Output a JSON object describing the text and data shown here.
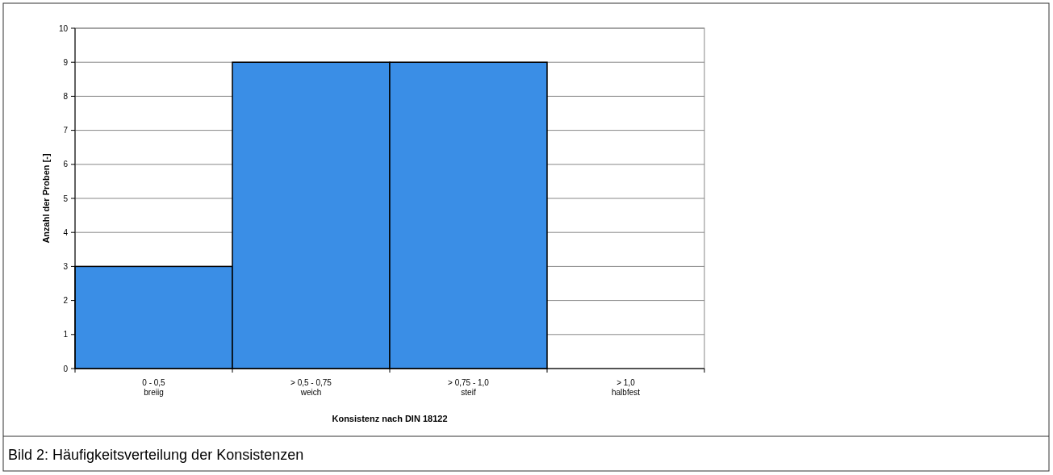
{
  "chart_data": {
    "type": "bar",
    "categories": [
      "0 - 0,5\nbreiig",
      "> 0,5 - 0,75\nweich",
      "> 0,75 - 1,0\nsteif",
      "> 1,0\nhalbfest"
    ],
    "values": [
      3,
      9,
      9,
      0
    ],
    "color": "#3a8ee6",
    "ylim": [
      0,
      10
    ],
    "yticks": [
      0,
      1,
      2,
      3,
      4,
      5,
      6,
      7,
      8,
      9,
      10
    ],
    "grid": "y",
    "xlabel": "Konsistenz nach DIN 18122",
    "ylabel": "Anzahl der Proben [-]",
    "annotations": [
      "Bild 2: Häufigkeitsverteilung der Konsistenzen"
    ]
  }
}
